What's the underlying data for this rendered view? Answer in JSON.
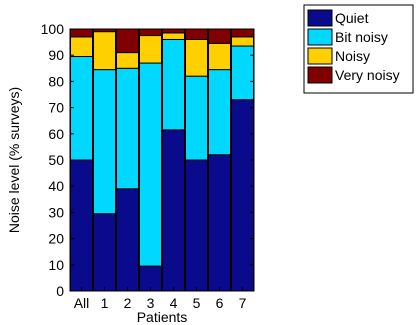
{
  "chart_data": {
    "type": "bar",
    "stacked": true,
    "categories": [
      "All",
      "1",
      "2",
      "3",
      "4",
      "5",
      "6",
      "7"
    ],
    "series": [
      {
        "name": "Quiet",
        "color": "#0a0a8c",
        "values": [
          50,
          29.5,
          39,
          9.5,
          61.5,
          50,
          52,
          73
        ]
      },
      {
        "name": "Bit noisy",
        "color": "#00d8ff",
        "values": [
          39.5,
          55,
          46,
          77.5,
          34.5,
          32,
          32.5,
          20.5
        ]
      },
      {
        "name": "Noisy",
        "color": "#ffd000",
        "values": [
          7.5,
          14.5,
          6,
          10.5,
          2.5,
          14,
          10,
          3.5
        ]
      },
      {
        "name": "Very noisy",
        "color": "#800000",
        "values": [
          3,
          1,
          9,
          2.5,
          1.5,
          4,
          5.5,
          3
        ]
      }
    ],
    "xlabel": "Patients",
    "ylabel": "Noise level (% surveys)",
    "ylim": [
      0,
      100
    ],
    "yticks": [
      0,
      10,
      20,
      30,
      40,
      50,
      60,
      70,
      80,
      90,
      100
    ],
    "grid": false,
    "legend": "outside-top-right"
  }
}
